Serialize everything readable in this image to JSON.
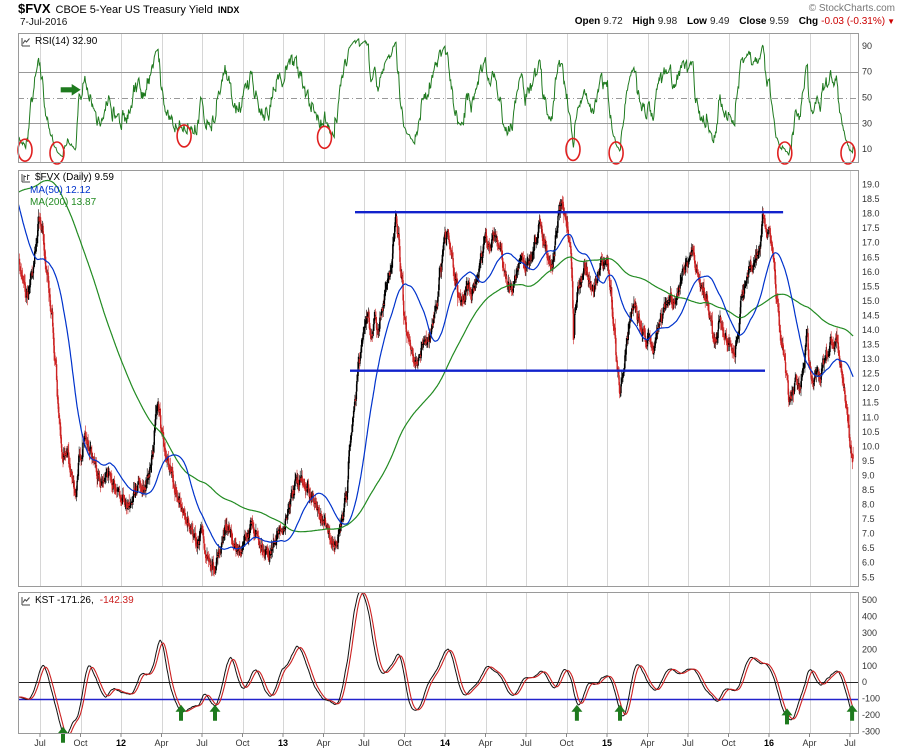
{
  "header": {
    "symbol": "$FVX",
    "name": "CBOE 5-Year US Treasury Yield",
    "exchange": "INDX",
    "copyright": "© StockCharts.com",
    "date": "7-Jul-2016",
    "quote": {
      "open_label": "Open",
      "open": "9.72",
      "high_label": "High",
      "high": "9.98",
      "low_label": "Low",
      "low": "9.49",
      "close_label": "Close",
      "close": "9.59",
      "chg_label": "Chg",
      "chg": "-0.03 (-0.31%)"
    }
  },
  "colors": {
    "grid": "#d6d6d6",
    "panel_border": "#9a9a9a",
    "candle_up": "#000000",
    "candle_down": "#cc2222",
    "ma50": "#0033cc",
    "ma200": "#228b22",
    "rsi": "#1f7a1f",
    "kst": "#111111",
    "kst_signal": "#cc2020",
    "trendline": "#1122cc",
    "annotation_red": "#e02020",
    "annotation_green": "#1e7a1e",
    "axis_text": "#333333"
  },
  "xaxis": {
    "labels": [
      {
        "t": 1.63,
        "text": "Jul",
        "year": false
      },
      {
        "t": 4.63,
        "text": "Oct",
        "year": false
      },
      {
        "t": 7.63,
        "text": "12",
        "year": true
      },
      {
        "t": 10.63,
        "text": "Apr",
        "year": false
      },
      {
        "t": 13.63,
        "text": "Jul",
        "year": false
      },
      {
        "t": 16.63,
        "text": "Oct",
        "year": false
      },
      {
        "t": 19.63,
        "text": "13",
        "year": true
      },
      {
        "t": 22.63,
        "text": "Apr",
        "year": false
      },
      {
        "t": 25.63,
        "text": "Jul",
        "year": false
      },
      {
        "t": 28.63,
        "text": "Oct",
        "year": false
      },
      {
        "t": 31.63,
        "text": "14",
        "year": true
      },
      {
        "t": 34.63,
        "text": "Apr",
        "year": false
      },
      {
        "t": 37.63,
        "text": "Jul",
        "year": false
      },
      {
        "t": 40.63,
        "text": "Oct",
        "year": false
      },
      {
        "t": 43.63,
        "text": "15",
        "year": true
      },
      {
        "t": 46.63,
        "text": "Apr",
        "year": false
      },
      {
        "t": 49.63,
        "text": "Jul",
        "year": false
      },
      {
        "t": 52.63,
        "text": "Oct",
        "year": false
      },
      {
        "t": 55.63,
        "text": "16",
        "year": true
      },
      {
        "t": 58.63,
        "text": "Apr",
        "year": false
      },
      {
        "t": 61.63,
        "text": "Jul",
        "year": false
      }
    ]
  },
  "chart_data": [
    {
      "id": "rsi",
      "type": "line",
      "label": "RSI(14) 32.90",
      "last_value": 32.9,
      "period": 14,
      "ylim": [
        0,
        100
      ],
      "yticks": [
        90,
        70,
        50,
        30,
        10
      ],
      "hlines": [
        {
          "v": 70,
          "style": "solid"
        },
        {
          "v": 50,
          "style": "dashdot"
        },
        {
          "v": 30,
          "style": "solid"
        }
      ],
      "circles": [
        {
          "t": 0.52
        },
        {
          "t": 2.89
        },
        {
          "t": 12.3
        },
        {
          "t": 22.7
        },
        {
          "t": 41.11
        },
        {
          "t": 44.3
        },
        {
          "t": 56.8
        },
        {
          "t": 61.48
        }
      ],
      "arrow": {
        "t": 3.9,
        "v": 56
      }
    },
    {
      "id": "price",
      "type": "candlestick",
      "timeframe": "Daily",
      "label": "$FVX (Daily) 9.59",
      "ma50_label": "MA(50) 12.12",
      "ma200_label": "MA(200) 13.87",
      "ma50_last": 12.12,
      "ma200_last": 13.87,
      "last_ohlc": {
        "o": 9.72,
        "h": 9.98,
        "l": 9.49,
        "c": 9.59
      },
      "ylim": [
        5.2,
        19.5
      ],
      "yticks": [
        19.0,
        18.5,
        18.0,
        17.5,
        17.0,
        16.5,
        16.0,
        15.5,
        15.0,
        14.5,
        14.0,
        13.5,
        13.0,
        12.5,
        12.0,
        11.5,
        11.0,
        10.5,
        10.0,
        9.5,
        9.0,
        8.5,
        8.0,
        7.5,
        7.0,
        6.5,
        6.0,
        5.5
      ],
      "trendlines": [
        {
          "v": 18.05,
          "t1": 24.96,
          "t2": 56.67
        },
        {
          "v": 12.6,
          "t1": 24.59,
          "t2": 55.33
        }
      ],
      "anchors": [
        [
          -10,
          13.6
        ],
        [
          -8,
          14.6
        ],
        [
          -6,
          19.2
        ],
        [
          -4.5,
          22.6
        ],
        [
          -3.5,
          23.2
        ],
        [
          -2.5,
          21
        ],
        [
          -1.5,
          18.8
        ],
        [
          -0.7,
          17.6
        ],
        [
          0,
          16.5
        ],
        [
          0.35,
          15.6
        ],
        [
          0.7,
          15.2
        ],
        [
          1,
          15.9
        ],
        [
          1.3,
          16.8
        ],
        [
          1.55,
          17.8
        ],
        [
          1.8,
          17.4
        ],
        [
          2.1,
          16.1
        ],
        [
          2.45,
          14.8
        ],
        [
          2.75,
          13
        ],
        [
          3,
          11.2
        ],
        [
          3.3,
          9.7
        ],
        [
          3.63,
          9.8
        ],
        [
          3.9,
          9
        ],
        [
          4.2,
          8.5
        ],
        [
          4.63,
          9.7
        ],
        [
          4.95,
          10.4
        ],
        [
          5.3,
          9.9
        ],
        [
          5.63,
          9.5
        ],
        [
          5.95,
          9
        ],
        [
          6.3,
          8.7
        ],
        [
          6.63,
          9
        ],
        [
          7,
          8.7
        ],
        [
          7.35,
          8.4
        ],
        [
          7.63,
          8.3
        ],
        [
          8,
          7.9
        ],
        [
          8.35,
          8.2
        ],
        [
          8.63,
          8.4
        ],
        [
          9,
          8.7
        ],
        [
          9.35,
          8.5
        ],
        [
          9.63,
          9
        ],
        [
          9.95,
          9.6
        ],
        [
          10.2,
          11
        ],
        [
          10.45,
          11.2
        ],
        [
          10.63,
          10.6
        ],
        [
          11,
          9.7
        ],
        [
          11.35,
          9.1
        ],
        [
          11.63,
          8.5
        ],
        [
          12,
          8.2
        ],
        [
          12.35,
          7.7
        ],
        [
          12.63,
          7.4
        ],
        [
          13,
          7
        ],
        [
          13.3,
          6.7
        ],
        [
          13.63,
          7.1
        ],
        [
          13.95,
          6.4
        ],
        [
          14.25,
          5.9
        ],
        [
          14.55,
          5.8
        ],
        [
          14.8,
          6.2
        ],
        [
          15.1,
          6.6
        ],
        [
          15.35,
          7.2
        ],
        [
          15.63,
          7.1
        ],
        [
          16,
          6.8
        ],
        [
          16.3,
          6.4
        ],
        [
          16.63,
          6.5
        ],
        [
          17,
          6.9
        ],
        [
          17.3,
          7.4
        ],
        [
          17.63,
          7.1
        ],
        [
          18,
          6.7
        ],
        [
          18.3,
          6.3
        ],
        [
          18.63,
          6.3
        ],
        [
          19,
          6.8
        ],
        [
          19.3,
          7.1
        ],
        [
          19.63,
          7.2
        ],
        [
          20,
          7.7
        ],
        [
          20.3,
          8.3
        ],
        [
          20.63,
          8.8
        ],
        [
          21,
          8.9
        ],
        [
          21.3,
          8.6
        ],
        [
          21.63,
          8.4
        ],
        [
          22,
          8
        ],
        [
          22.3,
          7.7
        ],
        [
          22.63,
          7.5
        ],
        [
          23,
          7
        ],
        [
          23.3,
          6.7
        ],
        [
          23.63,
          6.7
        ],
        [
          24,
          7.5
        ],
        [
          24.3,
          8.4
        ],
        [
          24.63,
          10.2
        ],
        [
          24.95,
          11.6
        ],
        [
          25.25,
          12.9
        ],
        [
          25.63,
          14
        ],
        [
          25.9,
          14.5
        ],
        [
          26.15,
          13.7
        ],
        [
          26.45,
          14.3
        ],
        [
          26.63,
          13.9
        ],
        [
          27,
          14.8
        ],
        [
          27.3,
          15.6
        ],
        [
          27.63,
          16.1
        ],
        [
          27.85,
          17.3
        ],
        [
          28,
          18
        ],
        [
          28.15,
          17.3
        ],
        [
          28.4,
          15.8
        ],
        [
          28.63,
          14.3
        ],
        [
          29,
          13.6
        ],
        [
          29.3,
          12.9
        ],
        [
          29.63,
          13
        ],
        [
          30,
          13.4
        ],
        [
          30.3,
          13.6
        ],
        [
          30.63,
          14
        ],
        [
          31,
          14.9
        ],
        [
          31.3,
          16.1
        ],
        [
          31.63,
          17.2
        ],
        [
          31.85,
          17.4
        ],
        [
          32.1,
          16.7
        ],
        [
          32.4,
          15.8
        ],
        [
          32.63,
          15
        ],
        [
          33,
          15
        ],
        [
          33.3,
          15.5
        ],
        [
          33.63,
          15.2
        ],
        [
          34,
          15.7
        ],
        [
          34.3,
          16.5
        ],
        [
          34.63,
          17.2
        ],
        [
          35,
          17
        ],
        [
          35.3,
          17.3
        ],
        [
          35.63,
          16.8
        ],
        [
          36,
          16.2
        ],
        [
          36.3,
          15.6
        ],
        [
          36.63,
          15.4
        ],
        [
          37,
          16
        ],
        [
          37.3,
          16.6
        ],
        [
          37.63,
          16.2
        ],
        [
          38,
          16.5
        ],
        [
          38.3,
          17
        ],
        [
          38.63,
          17.6
        ],
        [
          39,
          17
        ],
        [
          39.3,
          16.4
        ],
        [
          39.63,
          16.4
        ],
        [
          39.9,
          17.3
        ],
        [
          40.1,
          18.2
        ],
        [
          40.25,
          18.4
        ],
        [
          40.45,
          17.9
        ],
        [
          40.63,
          17.7
        ],
        [
          40.9,
          16.8
        ],
        [
          41.05,
          15.6
        ],
        [
          41.15,
          13.6
        ],
        [
          41.3,
          14.9
        ],
        [
          41.63,
          15.7
        ],
        [
          42,
          16.1
        ],
        [
          42.3,
          15.6
        ],
        [
          42.63,
          15.3
        ],
        [
          43,
          15.9
        ],
        [
          43.3,
          16.3
        ],
        [
          43.63,
          16.5
        ],
        [
          43.9,
          15.4
        ],
        [
          44.15,
          14
        ],
        [
          44.4,
          12.6
        ],
        [
          44.6,
          11.9
        ],
        [
          44.8,
          12.6
        ],
        [
          45.1,
          13.5
        ],
        [
          45.4,
          14.6
        ],
        [
          45.63,
          14.8
        ],
        [
          46,
          14.3
        ],
        [
          46.3,
          13.9
        ],
        [
          46.63,
          13.7
        ],
        [
          47,
          13.4
        ],
        [
          47.3,
          13.9
        ],
        [
          47.63,
          14.3
        ],
        [
          48,
          14.9
        ],
        [
          48.3,
          15.3
        ],
        [
          48.63,
          14.9
        ],
        [
          49,
          15.5
        ],
        [
          49.3,
          16.2
        ],
        [
          49.63,
          16.3
        ],
        [
          50,
          16.6
        ],
        [
          50.3,
          16
        ],
        [
          50.63,
          15.4
        ],
        [
          51,
          15.2
        ],
        [
          51.3,
          14.5
        ],
        [
          51.55,
          13.6
        ],
        [
          51.63,
          13.5
        ],
        [
          52,
          14.4
        ],
        [
          52.3,
          13.8
        ],
        [
          52.63,
          13.6
        ],
        [
          53,
          13.1
        ],
        [
          53.3,
          13.8
        ],
        [
          53.63,
          15.2
        ],
        [
          54,
          15.8
        ],
        [
          54.3,
          16.3
        ],
        [
          54.63,
          16.5
        ],
        [
          55,
          17
        ],
        [
          55.2,
          17.9
        ],
        [
          55.45,
          17.3
        ],
        [
          55.63,
          17.6
        ],
        [
          55.9,
          16.6
        ],
        [
          56.2,
          15
        ],
        [
          56.5,
          13.7
        ],
        [
          56.63,
          13.4
        ],
        [
          56.9,
          12.5
        ],
        [
          57.15,
          11.5
        ],
        [
          57.4,
          11.9
        ],
        [
          57.63,
          12.3
        ],
        [
          57.9,
          12
        ],
        [
          58.2,
          12.9
        ],
        [
          58.45,
          13.9
        ],
        [
          58.63,
          12.5
        ],
        [
          58.9,
          12.1
        ],
        [
          59.2,
          12.6
        ],
        [
          59.45,
          12.3
        ],
        [
          59.63,
          12.9
        ],
        [
          59.9,
          13.2
        ],
        [
          60.2,
          13.6
        ],
        [
          60.45,
          13.4
        ],
        [
          60.63,
          13.6
        ],
        [
          60.9,
          12.9
        ],
        [
          61.15,
          12.2
        ],
        [
          61.35,
          11.6
        ],
        [
          61.5,
          10.7
        ],
        [
          61.63,
          10.1
        ],
        [
          61.75,
          9.8
        ],
        [
          61.857,
          9.59
        ]
      ]
    },
    {
      "id": "kst",
      "type": "line",
      "label": "KST -171.26,",
      "signal_label": "-142.39",
      "kst_last": -171.26,
      "signal_last": -142.39,
      "ylim": [
        -310,
        550
      ],
      "yticks": [
        500,
        400,
        300,
        200,
        100,
        0,
        -100,
        -200,
        -300
      ],
      "hlines": [
        {
          "v": 0,
          "color": "#222222"
        },
        {
          "v": -100,
          "color": "#2222cc"
        }
      ],
      "arrows": [
        {
          "t": 3.33,
          "v": -272
        },
        {
          "t": 12.07,
          "v": -138
        },
        {
          "t": 14.59,
          "v": -138
        },
        {
          "t": 41.4,
          "v": -138
        },
        {
          "t": 44.59,
          "v": -138
        },
        {
          "t": 56.96,
          "v": -160
        },
        {
          "t": 61.78,
          "v": -138
        }
      ]
    }
  ]
}
